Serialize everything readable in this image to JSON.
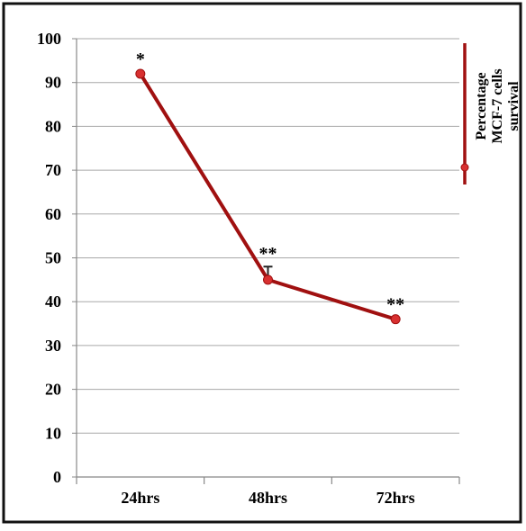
{
  "colors": {
    "series": "#a01010",
    "marker": "#d83030",
    "grid": "#a8a8a8",
    "axis": "#888888",
    "frame": "#111111",
    "text": "#000000"
  },
  "chart_data": {
    "type": "line",
    "categories": [
      "24hrs",
      "48hrs",
      "72hrs"
    ],
    "series": [
      {
        "name": "Percentage MCF-7 cells survival",
        "values": [
          92,
          45,
          36
        ],
        "error": [
          0,
          3,
          0
        ],
        "significance": [
          "*",
          "**",
          "**"
        ]
      }
    ],
    "ylim": [
      0,
      100
    ],
    "yticks": [
      "0",
      "10",
      "20",
      "30",
      "40",
      "50",
      "60",
      "70",
      "80",
      "90",
      "100"
    ],
    "grid": true,
    "legend_position": "right",
    "legend_lines": [
      "Percentage",
      "MCF-7 cells",
      "survival"
    ]
  }
}
